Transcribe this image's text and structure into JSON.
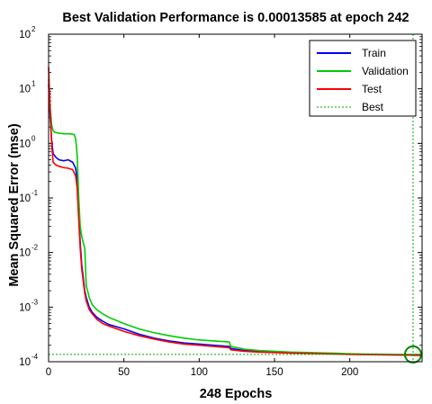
{
  "chart_data": {
    "type": "line",
    "title": "Best Validation Performance is 0.00013585 at epoch 242",
    "xlabel": "248 Epochs",
    "ylabel": "Mean Squared Error  (mse)",
    "xlim": [
      0,
      248
    ],
    "ylim": [
      0.0001,
      100
    ],
    "yscale": "log",
    "x_ticks": [
      0,
      50,
      100,
      150,
      200
    ],
    "y_ticks": [
      {
        "base": "10",
        "exp": "2",
        "value": 100
      },
      {
        "base": "10",
        "exp": "1",
        "value": 10
      },
      {
        "base": "10",
        "exp": "0",
        "value": 1
      },
      {
        "base": "10",
        "exp": "-1",
        "value": 0.1
      },
      {
        "base": "10",
        "exp": "-2",
        "value": 0.01
      },
      {
        "base": "10",
        "exp": "-3",
        "value": 0.001
      },
      {
        "base": "10",
        "exp": "-4",
        "value": 0.0001
      }
    ],
    "legend_position": "top-right",
    "series": [
      {
        "name": "Train",
        "color": "#0000ff",
        "x": [
          0,
          1,
          2,
          3,
          5,
          7,
          10,
          13,
          16,
          18,
          19,
          20,
          21,
          22,
          23,
          24,
          25,
          27,
          29,
          32,
          36,
          40,
          50,
          60,
          70,
          80,
          90,
          100,
          110,
          120,
          121,
          130,
          140,
          150,
          160,
          170,
          180,
          190,
          200,
          210,
          220,
          230,
          240,
          248
        ],
        "y": [
          12,
          3,
          1.2,
          0.65,
          0.55,
          0.5,
          0.48,
          0.5,
          0.45,
          0.35,
          0.2,
          0.05,
          0.015,
          0.006,
          0.0035,
          0.002,
          0.0015,
          0.001,
          0.0008,
          0.00065,
          0.00055,
          0.00048,
          0.0004,
          0.00032,
          0.00027,
          0.00024,
          0.00022,
          0.00021,
          0.0002,
          0.00019,
          0.000175,
          0.00016,
          0.000155,
          0.00015,
          0.000148,
          0.000145,
          0.000142,
          0.00014,
          0.000138,
          0.000136,
          0.000135,
          0.000133,
          0.000132,
          0.000131
        ]
      },
      {
        "name": "Validation",
        "color": "#00cc00",
        "x": [
          0,
          1,
          2,
          3,
          4,
          6,
          10,
          14,
          17,
          18,
          19,
          20,
          21,
          22,
          23,
          24,
          25,
          27,
          29,
          32,
          36,
          40,
          50,
          60,
          70,
          80,
          90,
          100,
          110,
          120,
          121,
          130,
          140,
          150,
          160,
          170,
          180,
          190,
          200,
          210,
          220,
          230,
          242,
          248
        ],
        "y": [
          15,
          5,
          2.2,
          1.7,
          1.6,
          1.55,
          1.5,
          1.5,
          1.45,
          1.2,
          0.6,
          0.1,
          0.03,
          0.02,
          0.015,
          0.012,
          0.0025,
          0.0015,
          0.0011,
          0.0009,
          0.00075,
          0.00065,
          0.0005,
          0.0004,
          0.00034,
          0.0003,
          0.00027,
          0.00025,
          0.00024,
          0.00023,
          0.00019,
          0.00017,
          0.00016,
          0.000155,
          0.00015,
          0.000148,
          0.000145,
          0.000143,
          0.00014,
          0.000138,
          0.000137,
          0.000136,
          0.00013585,
          0.000136
        ]
      },
      {
        "name": "Test",
        "color": "#ff0000",
        "x": [
          0,
          1,
          2,
          3,
          5,
          7,
          10,
          13,
          16,
          18,
          19,
          20,
          21,
          22,
          23,
          24,
          25,
          27,
          29,
          32,
          36,
          40,
          50,
          60,
          70,
          80,
          90,
          100,
          110,
          120,
          121,
          130,
          140,
          150,
          160,
          170,
          180,
          190,
          200,
          210,
          220,
          230,
          240,
          248
        ],
        "y": [
          25,
          4,
          1.0,
          0.45,
          0.4,
          0.38,
          0.36,
          0.35,
          0.33,
          0.25,
          0.15,
          0.04,
          0.012,
          0.005,
          0.003,
          0.0018,
          0.0013,
          0.0009,
          0.00075,
          0.0006,
          0.0005,
          0.00045,
          0.00036,
          0.0003,
          0.00026,
          0.00023,
          0.00021,
          0.0002,
          0.00019,
          0.00018,
          0.000165,
          0.000155,
          0.00015,
          0.000147,
          0.000144,
          0.000142,
          0.00014,
          0.000138,
          0.000136,
          0.000135,
          0.000134,
          0.000133,
          0.000132,
          0.000131
        ]
      }
    ],
    "best": {
      "name": "Best",
      "color": "#00aa00",
      "epoch": 242,
      "value": 0.00013585
    }
  }
}
